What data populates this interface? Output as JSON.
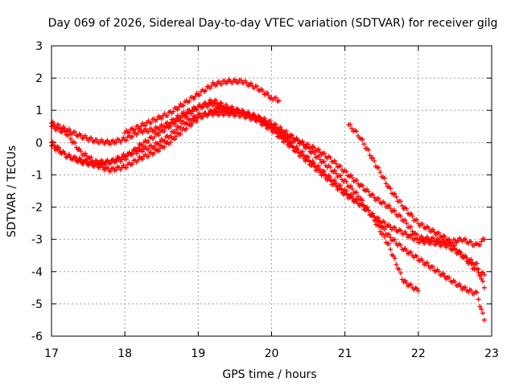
{
  "chart_data": {
    "type": "scatter",
    "title": "Day 069 of 2026, Sidereal Day-to-day VTEC variation (SDTVAR) for receiver gilg",
    "xlabel": "GPS time / hours",
    "ylabel": "SDTVAR / TECUs",
    "xlim": [
      17,
      23
    ],
    "ylim": [
      -6,
      3
    ],
    "xticks": [
      17,
      18,
      19,
      20,
      21,
      22,
      23
    ],
    "yticks": [
      -6,
      -5,
      -4,
      -3,
      -2,
      -1,
      0,
      1,
      2,
      3
    ],
    "grid": true,
    "marker": "plus",
    "color": "#ff0000",
    "series": [
      {
        "name": "trace-1",
        "x": [
          17.0,
          17.2,
          17.4,
          17.6,
          17.8,
          18.0,
          18.2,
          18.4,
          18.6,
          18.8,
          19.0,
          19.2,
          19.4,
          19.6,
          19.8,
          20.0,
          20.2,
          20.4,
          20.6,
          20.8,
          21.0,
          21.2,
          21.4,
          21.6,
          21.8,
          22.0
        ],
        "y": [
          0.6,
          0.4,
          0.2,
          0.05,
          0.0,
          0.1,
          0.35,
          0.4,
          0.6,
          0.9,
          1.1,
          1.2,
          1.0,
          0.95,
          0.8,
          0.6,
          0.3,
          0.0,
          -0.4,
          -0.8,
          -1.2,
          -1.7,
          -2.4,
          -3.2,
          -4.3,
          -4.6
        ]
      },
      {
        "name": "trace-2",
        "x": [
          17.0,
          17.2,
          17.4,
          17.6,
          17.8,
          18.0,
          18.2,
          18.4,
          18.6,
          18.8,
          19.0,
          19.2,
          19.4,
          19.6,
          19.8,
          20.0,
          20.2,
          20.4,
          20.6,
          20.8,
          21.0,
          21.2,
          21.4,
          21.6,
          21.8,
          22.0,
          22.2,
          22.4,
          22.6,
          22.8,
          22.9
        ],
        "y": [
          -0.1,
          -0.4,
          -0.55,
          -0.7,
          -0.85,
          -0.75,
          -0.5,
          -0.3,
          0.0,
          0.4,
          0.75,
          1.0,
          1.0,
          0.95,
          0.75,
          0.5,
          0.2,
          0.0,
          -0.2,
          -0.5,
          -0.9,
          -1.3,
          -1.7,
          -2.0,
          -2.4,
          -2.95,
          -3.0,
          -3.1,
          -3.0,
          -3.2,
          -3.0
        ]
      },
      {
        "name": "trace-3",
        "x": [
          17.0,
          17.2,
          17.4,
          17.6,
          17.8,
          18.0,
          18.2,
          18.4,
          18.6,
          18.8,
          19.0,
          19.2,
          19.4,
          19.6,
          19.8,
          20.0,
          20.2,
          20.4,
          20.6,
          20.8,
          21.0,
          21.2,
          21.4,
          21.6,
          21.8,
          22.0,
          22.2,
          22.4,
          22.6,
          22.8,
          22.9
        ],
        "y": [
          0.5,
          0.3,
          -0.3,
          -0.6,
          -0.6,
          -0.5,
          -0.1,
          0.2,
          0.5,
          0.8,
          1.1,
          1.3,
          1.1,
          0.95,
          0.8,
          0.5,
          0.1,
          -0.3,
          -0.7,
          -1.1,
          -1.5,
          -1.9,
          -2.3,
          -2.6,
          -2.8,
          -3.05,
          -3.1,
          -3.2,
          -3.5,
          -4.0,
          -4.1
        ]
      },
      {
        "name": "trace-4",
        "x": [
          17.0,
          17.2,
          17.4,
          17.6,
          17.8,
          18.0,
          18.2,
          18.4,
          18.6,
          18.8,
          19.0,
          19.2,
          19.4,
          19.6,
          19.8,
          20.0,
          20.2,
          20.4,
          20.6,
          20.8,
          21.0,
          21.2,
          21.4,
          21.6,
          21.8,
          22.0,
          22.2,
          22.4,
          22.6,
          22.8,
          22.9
        ],
        "y": [
          0.0,
          -0.4,
          -0.6,
          -0.7,
          -0.6,
          -0.4,
          -0.25,
          -0.1,
          0.2,
          0.6,
          0.85,
          0.9,
          0.9,
          0.85,
          0.7,
          0.4,
          0.0,
          -0.4,
          -0.8,
          -1.2,
          -1.6,
          -1.9,
          -2.3,
          -2.9,
          -3.3,
          -3.6,
          -3.9,
          -4.2,
          -4.5,
          -4.7,
          -5.5
        ]
      },
      {
        "name": "trace-5",
        "x": [
          18.0,
          18.2,
          18.4,
          18.6,
          18.8,
          19.0,
          19.2,
          19.4,
          19.6,
          19.8,
          20.0,
          20.1
        ],
        "y": [
          0.3,
          0.5,
          0.7,
          0.9,
          1.2,
          1.5,
          1.8,
          1.9,
          1.9,
          1.7,
          1.4,
          1.3
        ]
      },
      {
        "name": "trace-6",
        "x": [
          21.05,
          21.2,
          21.4,
          21.6,
          21.8,
          22.0,
          22.2,
          22.4,
          22.6,
          22.8,
          22.9
        ],
        "y": [
          0.55,
          0.2,
          -0.6,
          -1.4,
          -2.0,
          -2.5,
          -2.75,
          -3.0,
          -3.5,
          -3.8,
          -4.5
        ]
      }
    ]
  }
}
